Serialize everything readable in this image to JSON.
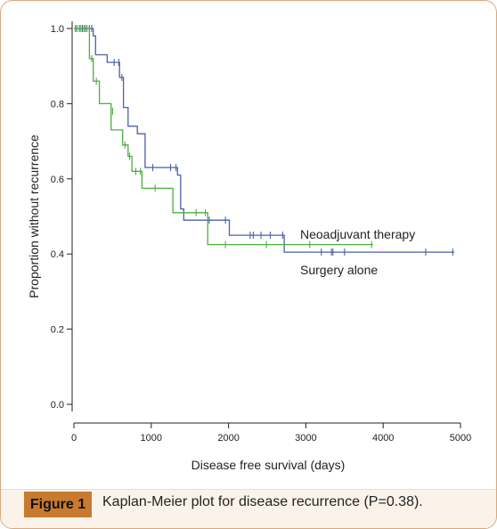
{
  "figure": {
    "label": "Figure 1",
    "caption": "Kaplan-Meier plot for disease recurrence (P=0.38)."
  },
  "colors": {
    "neoadjuvant": "#4f5fa8",
    "surgery": "#4caf3e",
    "label_bg": "#c87a2f",
    "frame": "#d9a87a"
  },
  "chart_data": {
    "type": "line",
    "subtype": "kaplan-meier",
    "title": "",
    "xlabel": "Disease free survival (days)",
    "ylabel": "Proportion without recurrence",
    "xlim": [
      0,
      5000
    ],
    "ylim": [
      0,
      1.0
    ],
    "xticks": [
      0,
      1000,
      2000,
      3000,
      4000,
      5000
    ],
    "xtick_labels": [
      "0",
      "1000",
      "2000",
      "3000",
      "4000",
      "5000"
    ],
    "yticks": [
      0,
      0.2,
      0.4,
      0.6,
      0.8,
      1.0
    ],
    "ytick_labels": [
      "0.0",
      "0.2",
      "0.4",
      "0.6",
      "0.8",
      "1.0"
    ],
    "grid": false,
    "series": [
      {
        "name": "Neoadjuvant therapy",
        "color": "#4f5fa8",
        "steps": [
          [
            0,
            1.0
          ],
          [
            250,
            1.0
          ],
          [
            250,
            0.98
          ],
          [
            280,
            0.98
          ],
          [
            280,
            0.93
          ],
          [
            430,
            0.93
          ],
          [
            430,
            0.91
          ],
          [
            590,
            0.91
          ],
          [
            590,
            0.87
          ],
          [
            640,
            0.87
          ],
          [
            640,
            0.79
          ],
          [
            700,
            0.79
          ],
          [
            700,
            0.74
          ],
          [
            820,
            0.74
          ],
          [
            820,
            0.72
          ],
          [
            920,
            0.72
          ],
          [
            920,
            0.63
          ],
          [
            1340,
            0.63
          ],
          [
            1340,
            0.61
          ],
          [
            1380,
            0.61
          ],
          [
            1380,
            0.52
          ],
          [
            1420,
            0.52
          ],
          [
            1420,
            0.49
          ],
          [
            2010,
            0.49
          ],
          [
            2010,
            0.45
          ],
          [
            2720,
            0.45
          ],
          [
            2720,
            0.405
          ],
          [
            4920,
            0.405
          ]
        ],
        "censored": [
          [
            20,
            1.0
          ],
          [
            70,
            1.0
          ],
          [
            110,
            1.0
          ],
          [
            150,
            1.0
          ],
          [
            200,
            1.0
          ],
          [
            230,
            1.0
          ],
          [
            520,
            0.91
          ],
          [
            580,
            0.91
          ],
          [
            620,
            0.87
          ],
          [
            1020,
            0.63
          ],
          [
            1250,
            0.63
          ],
          [
            1320,
            0.63
          ],
          [
            1750,
            0.49
          ],
          [
            1960,
            0.49
          ],
          [
            2280,
            0.45
          ],
          [
            2320,
            0.45
          ],
          [
            2420,
            0.45
          ],
          [
            2540,
            0.45
          ],
          [
            2700,
            0.45
          ],
          [
            3200,
            0.405
          ],
          [
            3330,
            0.405
          ],
          [
            3350,
            0.405
          ],
          [
            3500,
            0.405
          ],
          [
            4550,
            0.405
          ],
          [
            4900,
            0.405
          ]
        ]
      },
      {
        "name": "Surgery alone",
        "color": "#4caf3e",
        "steps": [
          [
            0,
            1.0
          ],
          [
            200,
            1.0
          ],
          [
            200,
            0.92
          ],
          [
            250,
            0.92
          ],
          [
            250,
            0.86
          ],
          [
            330,
            0.86
          ],
          [
            330,
            0.8
          ],
          [
            480,
            0.8
          ],
          [
            480,
            0.73
          ],
          [
            630,
            0.73
          ],
          [
            630,
            0.69
          ],
          [
            700,
            0.69
          ],
          [
            700,
            0.66
          ],
          [
            750,
            0.66
          ],
          [
            750,
            0.62
          ],
          [
            880,
            0.62
          ],
          [
            880,
            0.575
          ],
          [
            1280,
            0.575
          ],
          [
            1280,
            0.51
          ],
          [
            1730,
            0.51
          ],
          [
            1730,
            0.425
          ],
          [
            3870,
            0.425
          ]
        ],
        "censored": [
          [
            40,
            1.0
          ],
          [
            90,
            1.0
          ],
          [
            130,
            1.0
          ],
          [
            170,
            1.0
          ],
          [
            230,
            0.92
          ],
          [
            290,
            0.86
          ],
          [
            500,
            0.78
          ],
          [
            660,
            0.69
          ],
          [
            720,
            0.66
          ],
          [
            800,
            0.62
          ],
          [
            860,
            0.62
          ],
          [
            1050,
            0.575
          ],
          [
            1580,
            0.51
          ],
          [
            1700,
            0.51
          ],
          [
            1960,
            0.425
          ],
          [
            2490,
            0.425
          ],
          [
            3050,
            0.425
          ],
          [
            3850,
            0.425
          ]
        ]
      }
    ],
    "annotations": [
      {
        "text": "Neoadjuvant therapy",
        "series": "Neoadjuvant therapy"
      },
      {
        "text": "Surgery alone",
        "series": "Surgery alone"
      }
    ]
  }
}
